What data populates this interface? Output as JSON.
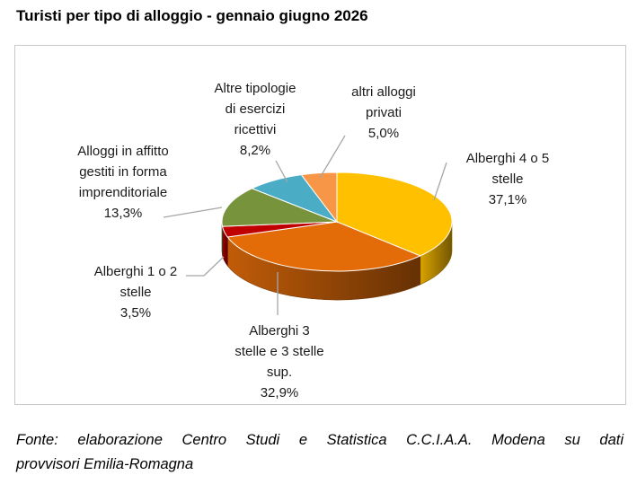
{
  "title": "Turisti per tipo di alloggio - gennaio giugno 2026",
  "chart_data": {
    "type": "pie",
    "title": "Turisti per tipo di alloggio - gennaio giugno 2026",
    "unit": "%",
    "legend": "none",
    "slices": [
      {
        "key": "a45",
        "label_lines": [
          "Alberghi  4 o 5",
          "stelle"
        ],
        "value": 37.1,
        "value_label": "37,1%",
        "color": "#FFC000"
      },
      {
        "key": "a3",
        "label_lines": [
          "Alberghi 3",
          "stelle e 3 stelle",
          "sup."
        ],
        "value": 32.9,
        "value_label": "32,9%",
        "color": "#E36C09"
      },
      {
        "key": "a12",
        "label_lines": [
          "Alberghi 1 o 2",
          "stelle"
        ],
        "value": 3.5,
        "value_label": "3,5%",
        "color": "#C00000"
      },
      {
        "key": "aff",
        "label_lines": [
          "Alloggi in affitto",
          "gestiti in forma",
          "imprenditoriale"
        ],
        "value": 13.3,
        "value_label": "13,3%",
        "color": "#77933C"
      },
      {
        "key": "altre",
        "label_lines": [
          "Altre tipologie",
          "di esercizi",
          "ricettivi"
        ],
        "value": 8.2,
        "value_label": "8,2%",
        "color": "#4BACC6"
      },
      {
        "key": "priv",
        "label_lines": [
          "altri alloggi",
          "privati"
        ],
        "value": 5.0,
        "value_label": "5,0%",
        "color": "#F79646"
      }
    ]
  },
  "source": {
    "line1": "Fonte: elaborazione Centro Studi e Statistica C.C.I.A.A. Modena su dati",
    "line2": "provvisori Emilia-Romagna"
  }
}
